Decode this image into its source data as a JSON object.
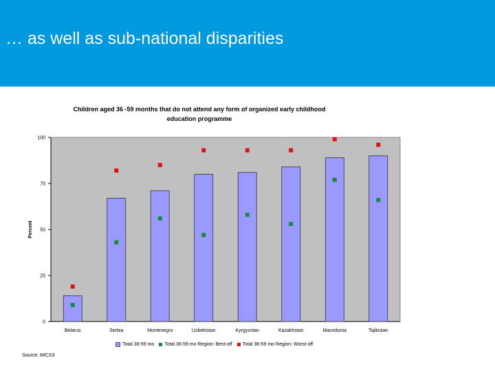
{
  "slide": {
    "title": "… as well as sub-national disparities"
  },
  "chart_data": {
    "type": "bar",
    "title_line1": "Children aged 36 -59 months that do not attend any form of organized early childhood",
    "title_line2": "education programme",
    "ylabel": "Percent",
    "xlabel": "",
    "ylim": [
      0,
      100
    ],
    "yticks": [
      0,
      25,
      50,
      75,
      100
    ],
    "categories": [
      "Belarus",
      "Serbia",
      "Montenegro",
      "Uzbekistan",
      "Kyrgyzstan",
      "Kazakhstan",
      "Macedonia",
      "Tajikistan"
    ],
    "series": [
      {
        "name": "Total 36-59 mo",
        "kind": "bar",
        "color": "#9999ff",
        "values": [
          14,
          67,
          71,
          80,
          81,
          84,
          89,
          90
        ]
      },
      {
        "name": "Total 36-59 mo Region: Best-off",
        "kind": "marker",
        "color": "#1a8a3a",
        "values": [
          9,
          43,
          56,
          47,
          58,
          53,
          77,
          66
        ]
      },
      {
        "name": "Total 36-59 mo Region: Worst-off",
        "kind": "marker",
        "color": "#dd1111",
        "values": [
          19,
          82,
          85,
          93,
          93,
          93,
          99,
          96
        ]
      }
    ],
    "plot_background": "#c0c0c0",
    "grid": false,
    "legend_position": "bottom",
    "source": "Source: MICS3"
  }
}
